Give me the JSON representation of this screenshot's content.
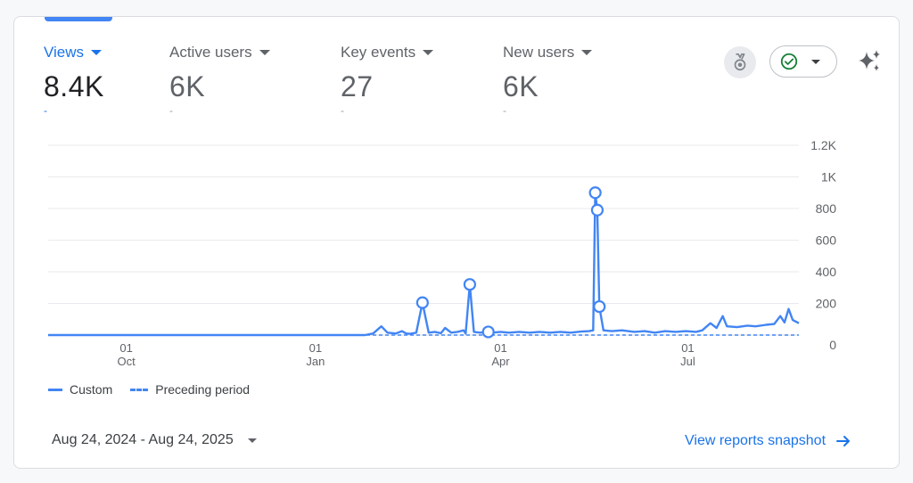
{
  "metrics": [
    {
      "name": "Views",
      "value": "8.4K",
      "delta": "-",
      "active": true
    },
    {
      "name": "Active users",
      "value": "6K",
      "delta": "-",
      "active": false
    },
    {
      "name": "Key events",
      "value": "27",
      "delta": "-",
      "active": false
    },
    {
      "name": "New users",
      "value": "6K",
      "delta": "-",
      "active": false
    }
  ],
  "colors": {
    "accent": "#1a73e8",
    "line": "#4285f4",
    "grid": "#e8eaed",
    "success": "#188038"
  },
  "icons": {
    "insights": "medal-icon",
    "status": "check-circle-icon",
    "ai": "sparkle-icon"
  },
  "chart_data": {
    "type": "line",
    "x_start": "2024-08-24",
    "x_end": "2025-08-24",
    "x_tick_labels": [
      {
        "day": "01",
        "month": "Oct",
        "date": "2024-10-01"
      },
      {
        "day": "01",
        "month": "Jan",
        "date": "2025-01-01"
      },
      {
        "day": "01",
        "month": "Apr",
        "date": "2025-04-01"
      },
      {
        "day": "01",
        "month": "Jul",
        "date": "2025-07-01"
      }
    ],
    "y_ticks": [
      0,
      200,
      400,
      600,
      800,
      1000,
      1200
    ],
    "y_tick_labels": [
      "0",
      "200",
      "400",
      "600",
      "800",
      "1K",
      "1.2K"
    ],
    "ylim": [
      0,
      1200
    ],
    "axis_position": "right",
    "grid": true,
    "series": [
      {
        "name": "Custom",
        "style": "solid",
        "points": [
          [
            "2024-08-24",
            0
          ],
          [
            "2024-12-31",
            0
          ],
          [
            "2025-01-25",
            0
          ],
          [
            "2025-01-29",
            10
          ],
          [
            "2025-02-02",
            55
          ],
          [
            "2025-02-05",
            15
          ],
          [
            "2025-02-09",
            10
          ],
          [
            "2025-02-12",
            25
          ],
          [
            "2025-02-14",
            10
          ],
          [
            "2025-02-16",
            8
          ],
          [
            "2025-02-19",
            15
          ],
          [
            "2025-02-22",
            205
          ],
          [
            "2025-02-25",
            15
          ],
          [
            "2025-02-28",
            20
          ],
          [
            "2025-03-03",
            12
          ],
          [
            "2025-03-05",
            45
          ],
          [
            "2025-03-08",
            15
          ],
          [
            "2025-03-11",
            20
          ],
          [
            "2025-03-14",
            30
          ],
          [
            "2025-03-15",
            10
          ],
          [
            "2025-03-17",
            320
          ],
          [
            "2025-03-19",
            20
          ],
          [
            "2025-03-22",
            15
          ],
          [
            "2025-03-24",
            18
          ],
          [
            "2025-03-26",
            20
          ],
          [
            "2025-03-28",
            15
          ],
          [
            "2025-04-01",
            20
          ],
          [
            "2025-04-05",
            15
          ],
          [
            "2025-04-10",
            20
          ],
          [
            "2025-04-15",
            15
          ],
          [
            "2025-04-20",
            20
          ],
          [
            "2025-04-25",
            15
          ],
          [
            "2025-04-30",
            20
          ],
          [
            "2025-05-05",
            15
          ],
          [
            "2025-05-10",
            22
          ],
          [
            "2025-05-14",
            25
          ],
          [
            "2025-05-16",
            30
          ],
          [
            "2025-05-17",
            900
          ],
          [
            "2025-05-18",
            790
          ],
          [
            "2025-05-19",
            180
          ],
          [
            "2025-05-21",
            30
          ],
          [
            "2025-05-25",
            25
          ],
          [
            "2025-05-30",
            30
          ],
          [
            "2025-06-05",
            20
          ],
          [
            "2025-06-10",
            25
          ],
          [
            "2025-06-15",
            15
          ],
          [
            "2025-06-20",
            25
          ],
          [
            "2025-06-25",
            20
          ],
          [
            "2025-06-30",
            25
          ],
          [
            "2025-07-05",
            20
          ],
          [
            "2025-07-08",
            30
          ],
          [
            "2025-07-12",
            75
          ],
          [
            "2025-07-15",
            45
          ],
          [
            "2025-07-18",
            120
          ],
          [
            "2025-07-20",
            55
          ],
          [
            "2025-07-25",
            50
          ],
          [
            "2025-07-30",
            60
          ],
          [
            "2025-08-03",
            55
          ],
          [
            "2025-08-08",
            65
          ],
          [
            "2025-08-12",
            70
          ],
          [
            "2025-08-15",
            120
          ],
          [
            "2025-08-17",
            80
          ],
          [
            "2025-08-19",
            165
          ],
          [
            "2025-08-21",
            95
          ],
          [
            "2025-08-24",
            75
          ]
        ]
      },
      {
        "name": "Preceding period",
        "style": "dashed",
        "points": [
          [
            "2024-08-24",
            0
          ],
          [
            "2025-08-24",
            0
          ]
        ]
      }
    ],
    "annotations": [
      {
        "date": "2025-02-22",
        "value": 205
      },
      {
        "date": "2025-03-17",
        "value": 320
      },
      {
        "date": "2025-03-26",
        "value": 20
      },
      {
        "date": "2025-05-17",
        "value": 900
      },
      {
        "date": "2025-05-18",
        "value": 790
      },
      {
        "date": "2025-05-19",
        "value": 180
      }
    ],
    "legend": [
      "Custom",
      "Preceding period"
    ],
    "legend_position": "bottom-left"
  },
  "footer": {
    "date_range": "Aug 24, 2024 - Aug 24, 2025",
    "link_label": "View reports snapshot"
  }
}
